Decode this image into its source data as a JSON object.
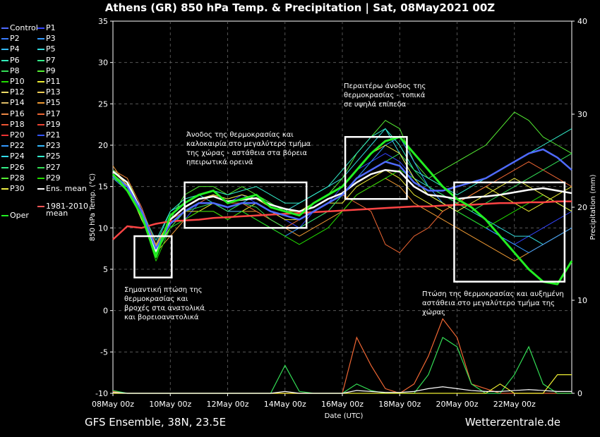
{
  "title": "Athens  (GR)  850 hPa Temp. & Precipitation | Sat, 08May2021 00Z",
  "footer": {
    "left": "GFS Ensemble, 38N, 23.5E",
    "right": "Wetterzentrale.de"
  },
  "legend": [
    {
      "label": "Control",
      "color": "#4f6bff"
    },
    {
      "label": "P1",
      "color": "#3344ff"
    },
    {
      "label": "P2",
      "color": "#3a7bff"
    },
    {
      "label": "P3",
      "color": "#3399ff"
    },
    {
      "label": "P4",
      "color": "#33bbff"
    },
    {
      "label": "P5",
      "color": "#33dddd"
    },
    {
      "label": "P6",
      "color": "#33eebb"
    },
    {
      "label": "P7",
      "color": "#33ee88"
    },
    {
      "label": "P8",
      "color": "#33dd55"
    },
    {
      "label": "P9",
      "color": "#55ee33"
    },
    {
      "label": "P10",
      "color": "#22dd00"
    },
    {
      "label": "P11",
      "color": "#eeee33"
    },
    {
      "label": "P12",
      "color": "#eedd66"
    },
    {
      "label": "P13",
      "color": "#eecc55"
    },
    {
      "label": "P14",
      "color": "#ddbb66"
    },
    {
      "label": "P15",
      "color": "#ee9933"
    },
    {
      "label": "P16",
      "color": "#ee8844"
    },
    {
      "label": "P17",
      "color": "#ee6633"
    },
    {
      "label": "P18",
      "color": "#ee5533"
    },
    {
      "label": "P19",
      "color": "#ee4433"
    },
    {
      "label": "P20",
      "color": "#ee3333"
    },
    {
      "label": "P21",
      "color": "#3355ff"
    },
    {
      "label": "P22",
      "color": "#3399ff"
    },
    {
      "label": "P23",
      "color": "#33bbff"
    },
    {
      "label": "P24",
      "color": "#33ddee"
    },
    {
      "label": "P25",
      "color": "#33eecc"
    },
    {
      "label": "P26",
      "color": "#33ee88"
    },
    {
      "label": "P27",
      "color": "#33dd55"
    },
    {
      "label": "P28",
      "color": "#55ee33"
    },
    {
      "label": "P29",
      "color": "#22dd00"
    },
    {
      "label": "P30",
      "color": "#eeee44"
    },
    {
      "label": "Ens. mean",
      "color": "#ffffff"
    },
    {
      "label": "Oper",
      "color": "#22ee22"
    },
    {
      "label": "1981-2010 mean",
      "color": "#ff5555"
    }
  ],
  "annotations": [
    {
      "id": "drop",
      "lines": [
        "Σημαντική πτώση της",
        "θερμοκρασίας και",
        "βροχές στα ανατολικά",
        "και βορειοανατολικά"
      ]
    },
    {
      "id": "rise1",
      "lines": [
        "Άνοδος της θερμοκρασίας και",
        "καλοκαιρία στο μεγαλύτερο τμήμα",
        "της χώρας - αστάθεια στα βόρεια",
        "ηπειρωτικά ορεινά"
      ]
    },
    {
      "id": "rise2",
      "lines": [
        "Περαιτέρω άνοδος της",
        "θερμοκρασίας - τοπικά",
        "σε υψηλά επίπεδα"
      ]
    },
    {
      "id": "fall",
      "lines": [
        "Πτώση της θερμοκρασίας και αυξημένη",
        "αστάθεια στο μεγαλύτερο τμήμα της",
        "χώρας"
      ]
    }
  ],
  "chart_data": {
    "type": "line",
    "xlabel": "Date (UTC)",
    "ylabel": "850 hPa Temp. (°C)",
    "y2label": "Precipitation (mm)",
    "xlim": [
      0,
      16
    ],
    "ylim": [
      -10,
      35
    ],
    "y2lim": [
      0,
      40
    ],
    "x_ticks": [
      {
        "x": 0,
        "label": "08May 00z"
      },
      {
        "x": 2,
        "label": "10May 00z"
      },
      {
        "x": 4,
        "label": "12May 00z"
      },
      {
        "x": 6,
        "label": "14May 00z"
      },
      {
        "x": 8,
        "label": "16May 00z"
      },
      {
        "x": 10,
        "label": "18May 00z"
      },
      {
        "x": 12,
        "label": "20May 00z"
      },
      {
        "x": 14,
        "label": "22May 00z"
      }
    ],
    "y_ticks": [
      -10,
      -5,
      0,
      5,
      10,
      15,
      20,
      25,
      30,
      35
    ],
    "y2_ticks": [
      0,
      10,
      20,
      30,
      40
    ],
    "x": [
      0,
      0.5,
      1,
      1.5,
      2,
      2.5,
      3,
      3.5,
      4,
      4.5,
      5,
      5.5,
      6,
      6.5,
      7,
      7.5,
      8,
      8.5,
      9,
      9.5,
      10,
      10.5,
      11,
      11.5,
      12,
      12.5,
      13,
      13.5,
      14,
      14.5,
      15,
      15.5,
      16
    ],
    "series": [
      {
        "name": "Ens. mean",
        "color": "#ffffff",
        "width": 2.5,
        "values": [
          16.8,
          15.5,
          12,
          7.2,
          11,
          12.5,
          13.5,
          13.8,
          13.2,
          13.4,
          13.6,
          12.8,
          12.3,
          12,
          12.5,
          13.5,
          14.2,
          15.5,
          16.5,
          17,
          16.8,
          15,
          14,
          13.8,
          13.5,
          13.7,
          13.8,
          14,
          14.3,
          14.6,
          14.8,
          14.5,
          14.2
        ]
      },
      {
        "name": "Oper",
        "color": "#22ee22",
        "width": 3,
        "values": [
          16.5,
          14.5,
          11.5,
          6.5,
          11.5,
          13,
          14,
          14.5,
          13,
          13.5,
          14,
          12.5,
          12,
          11.5,
          13,
          14,
          15,
          17,
          19,
          20.5,
          21,
          19,
          17,
          15,
          13.5,
          12.5,
          11,
          9,
          7,
          5,
          3.5,
          3.2,
          6
        ]
      },
      {
        "name": "1981-2010 mean",
        "color": "#ff4444",
        "width": 2.5,
        "values": [
          8.6,
          10.2,
          10,
          10.5,
          10.8,
          10.9,
          11.0,
          11.2,
          11.3,
          11.4,
          11.5,
          11.6,
          11.7,
          11.8,
          11.9,
          12.0,
          12.1,
          12.2,
          12.3,
          12.4,
          12.5,
          12.6,
          12.6,
          12.7,
          12.8,
          12.8,
          12.9,
          13.0,
          13.0,
          13.1,
          13.1,
          13.2,
          13.2
        ]
      },
      {
        "name": "Control",
        "color": "#4f6bff",
        "width": 2.5,
        "values": [
          16.2,
          15,
          12,
          7.5,
          10.5,
          12,
          13,
          13,
          12.5,
          13,
          13,
          12,
          11.5,
          11,
          12,
          13,
          14,
          16,
          17,
          18,
          17.5,
          15.5,
          14.5,
          14.5,
          15,
          15.5,
          16,
          17,
          18,
          19,
          19.5,
          18.5,
          17
        ]
      },
      {
        "name": "P1",
        "color": "#3344ff",
        "width": 1,
        "values": [
          17,
          15,
          12.5,
          7,
          10,
          11,
          13,
          14,
          13,
          14,
          13,
          12,
          11,
          10,
          12,
          13,
          15,
          17,
          18,
          19,
          18,
          16,
          14,
          13,
          12,
          11,
          10,
          9,
          8,
          9,
          10,
          11,
          12
        ]
      },
      {
        "name": "P5",
        "color": "#33dddd",
        "width": 1,
        "values": [
          16,
          15,
          11,
          8,
          12,
          13,
          14,
          13,
          12,
          13,
          14,
          13,
          12,
          13,
          14,
          15,
          16,
          18,
          20,
          22,
          19,
          16,
          15,
          14,
          13,
          12,
          11,
          10,
          9,
          9,
          8,
          9,
          10
        ]
      },
      {
        "name": "P9",
        "color": "#55ee33",
        "width": 1,
        "values": [
          17,
          16,
          12,
          6.5,
          11,
          14,
          15,
          15,
          14,
          15,
          14,
          13,
          12,
          12,
          13,
          14,
          16,
          19,
          21,
          23,
          22,
          18,
          16,
          17,
          18,
          19,
          20,
          22,
          24,
          23,
          21,
          20,
          19
        ]
      },
      {
        "name": "P11",
        "color": "#eeee33",
        "width": 1,
        "values": [
          16.5,
          15,
          11,
          7.5,
          10,
          12,
          12,
          13,
          12,
          12,
          13,
          12,
          11,
          11,
          12,
          13,
          13,
          15,
          16,
          17,
          16,
          14,
          13,
          12,
          13,
          14,
          15,
          14,
          13,
          12,
          13,
          14,
          15
        ]
      },
      {
        "name": "P15",
        "color": "#ee9933",
        "width": 1,
        "values": [
          17.5,
          15,
          12,
          7,
          9,
          11,
          12,
          12,
          11,
          12,
          12,
          11,
          10,
          9,
          10,
          11,
          12,
          14,
          15,
          16,
          15,
          13,
          12,
          11,
          10,
          9,
          8,
          7,
          6,
          7,
          8,
          9,
          10
        ]
      },
      {
        "name": "P17",
        "color": "#ee6633",
        "width": 1,
        "values": [
          17,
          16,
          12.5,
          8,
          11,
          12,
          13,
          14,
          13,
          13,
          12,
          11,
          10,
          11,
          12,
          13,
          14,
          13,
          12,
          8,
          7,
          9,
          10,
          12,
          13,
          14,
          15,
          16,
          17,
          18,
          17,
          16,
          15
        ]
      },
      {
        "name": "P22",
        "color": "#3399ff",
        "width": 1,
        "values": [
          16,
          14.5,
          11.5,
          7,
          10.5,
          12,
          13,
          13,
          12,
          12,
          11,
          10,
          9,
          10,
          11,
          12,
          14,
          16,
          18,
          20,
          21,
          18,
          15,
          13,
          12,
          11,
          10,
          9,
          8,
          7,
          8,
          9,
          10
        ]
      },
      {
        "name": "P25",
        "color": "#33eecc",
        "width": 1,
        "values": [
          16.5,
          15,
          12,
          8.5,
          12,
          13.5,
          14,
          14.5,
          14,
          14.5,
          15,
          14,
          13,
          13,
          14,
          15,
          17,
          19,
          21,
          22,
          20,
          17,
          16,
          15,
          14,
          15,
          16,
          17,
          18,
          19,
          20,
          21,
          22
        ]
      },
      {
        "name": "P27",
        "color": "#33dd55",
        "width": 1,
        "values": [
          17,
          15.5,
          12,
          7,
          10,
          12,
          12.5,
          13,
          12,
          13,
          12.5,
          11,
          10,
          10,
          11,
          12,
          14,
          16,
          17,
          18,
          19,
          17,
          15,
          14,
          13,
          12,
          13,
          14,
          15,
          16,
          17,
          18,
          19
        ]
      },
      {
        "name": "P29",
        "color": "#22dd00",
        "width": 1,
        "values": [
          16,
          15,
          11.5,
          6,
          10,
          11,
          12,
          12,
          11,
          12,
          11,
          10,
          9,
          8,
          9,
          10,
          12,
          14,
          15,
          16,
          17,
          16,
          14,
          13,
          12,
          11,
          10,
          11,
          12,
          13,
          14,
          13,
          12
        ]
      },
      {
        "name": "P30",
        "color": "#eeee44",
        "width": 1,
        "values": [
          16.8,
          15.2,
          12,
          7.8,
          11,
          12.5,
          13.5,
          14,
          13.5,
          14,
          13.5,
          12.5,
          12,
          12,
          13,
          14,
          15,
          17,
          19,
          20,
          19,
          16,
          14,
          13,
          12,
          13,
          14,
          15,
          16,
          15,
          14,
          13,
          12
        ]
      }
    ],
    "precipitation": {
      "axis": "y2",
      "series": [
        {
          "name": "P17",
          "color": "#ee6633",
          "values": [
            0.2,
            0,
            0,
            0,
            0,
            0,
            0,
            0,
            0,
            0,
            0,
            0,
            0,
            0,
            0,
            0,
            0,
            6,
            3,
            0.5,
            0,
            1,
            4,
            8,
            6,
            1,
            0.5,
            0,
            0,
            0,
            0,
            0,
            0
          ]
        },
        {
          "name": "P8",
          "color": "#33dd55",
          "values": [
            0.3,
            0,
            0,
            0,
            0,
            0,
            0,
            0,
            0,
            0,
            0,
            0,
            3,
            0.2,
            0,
            0,
            0,
            1,
            0.3,
            0,
            0,
            0,
            2,
            6,
            5,
            1,
            0,
            0,
            2,
            5,
            1,
            0,
            0
          ]
        },
        {
          "name": "P11",
          "color": "#eeee33",
          "values": [
            0,
            0,
            0,
            0,
            0,
            0,
            0,
            0,
            0,
            0,
            0,
            0,
            0,
            0,
            0,
            0,
            0,
            0,
            0,
            0,
            0,
            0,
            0,
            0,
            0,
            0,
            0,
            1,
            0,
            0,
            0,
            2,
            2
          ]
        },
        {
          "name": "Ens. mean",
          "color": "#ffffff",
          "values": [
            0.1,
            0,
            0,
            0,
            0,
            0,
            0,
            0,
            0,
            0,
            0,
            0,
            0.2,
            0,
            0,
            0,
            0,
            0.3,
            0.2,
            0.1,
            0.1,
            0.2,
            0.5,
            0.7,
            0.5,
            0.3,
            0.2,
            0.2,
            0.3,
            0.4,
            0.3,
            0.2,
            0.2
          ]
        }
      ]
    }
  }
}
